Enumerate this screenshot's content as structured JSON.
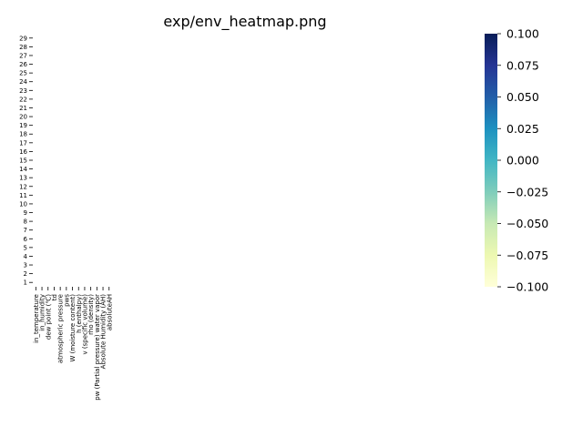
{
  "chart_data": {
    "type": "heatmap",
    "title": "exp/env_heatmap.png",
    "xlabel": "",
    "ylabel": "",
    "columns": [
      "in_temperature",
      "in_humidity",
      "dew point (℃)",
      "td",
      "atmospheric pressure",
      "pws",
      "W (moisture content)",
      "h (enthalpy)",
      "v (specific volume)",
      "rho (density)",
      "pw (Partial pressure) water vapor",
      "Absolute Humidity (AH)",
      "absoluteAH"
    ],
    "rows": [
      "1",
      "2",
      "3",
      "4",
      "5",
      "6",
      "7",
      "8",
      "9",
      "10",
      "11",
      "12",
      "13",
      "14",
      "15",
      "16",
      "17",
      "18",
      "19",
      "20",
      "21",
      "22",
      "23",
      "24",
      "25",
      "26",
      "27",
      "28",
      "29"
    ],
    "values": [],
    "colorbar": {
      "colormap": "YlGnBu",
      "range": [
        -0.1,
        0.1
      ],
      "ticks": [
        0.1,
        0.075,
        0.05,
        0.025,
        0.0,
        -0.025,
        -0.05,
        -0.075,
        -0.1
      ],
      "tick_labels": [
        "0.100",
        "0.075",
        "0.050",
        "0.025",
        "0.000",
        "−0.025",
        "−0.050",
        "−0.075",
        "−0.100"
      ],
      "colors": [
        "#ffffd9",
        "#edf8b1",
        "#c7e9b4",
        "#7fcdbb",
        "#41b6c4",
        "#1d91c0",
        "#225ea8",
        "#253494",
        "#081d58"
      ]
    }
  }
}
